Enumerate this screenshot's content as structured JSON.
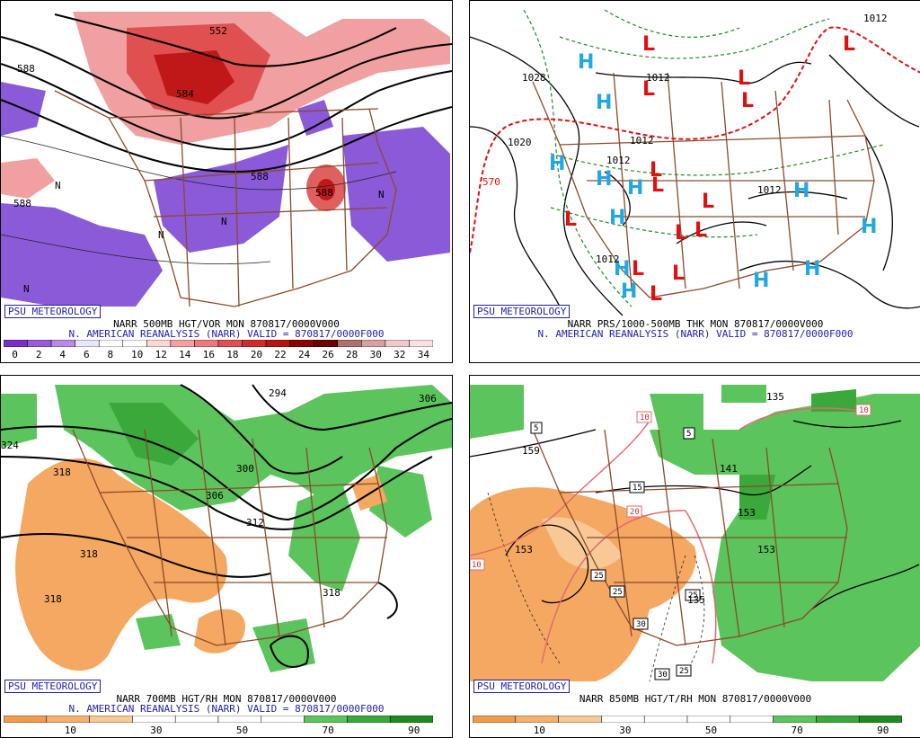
{
  "branding": {
    "label": "PSU METEOROLOGY"
  },
  "panels": [
    {
      "id": "top-left",
      "title_line1": "NARR 500MB HGT/VOR MON 870817/0000V000",
      "title_line2": "N. AMERICAN REANALYSIS (NARR) VALID = 870817/0000F000",
      "colorbar": {
        "colors": [
          "#7a2fc4",
          "#9a5ad8",
          "#b88ae6",
          "#e6e6ff",
          "#ffffff",
          "#ffffff",
          "#ffd6d6",
          "#f4a0a0",
          "#ec7a7a",
          "#e05050",
          "#d02a2a",
          "#b81212",
          "#8c0000",
          "#6a0000",
          "#b07070",
          "#d8a0a0",
          "#f0c8c8",
          "#ffe0e0"
        ],
        "labels": [
          "0",
          "2",
          "4",
          "6",
          "8",
          "10",
          "12",
          "14",
          "16",
          "18",
          "20",
          "22",
          "24",
          "26",
          "28",
          "30",
          "32",
          "34"
        ]
      },
      "map_labels": [
        "552",
        "584",
        "588",
        "588",
        "588",
        "588",
        "N",
        "N",
        "N",
        "N",
        "N"
      ]
    },
    {
      "id": "top-right",
      "title_line1": "NARR PRS/1000-500MB THK MON 870817/0000V000",
      "title_line2": "N. AMERICAN REANALYSIS (NARR) VALID = 870817/0000F000",
      "colorbar": null,
      "map_labels": [
        "1028",
        "1020",
        "1012",
        "1012",
        "1012",
        "1012",
        "1012",
        "1012",
        "570",
        "H",
        "L"
      ]
    },
    {
      "id": "bottom-left",
      "title_line1": "NARR 700MB HGT/RH MON 870817/0000V000",
      "title_line2": "N. AMERICAN REANALYSIS (NARR) VALID = 870817/0000F000",
      "colorbar": {
        "colors": [
          "#f29a4e",
          "#f5b070",
          "#f8c896",
          "#ffffff",
          "#ffffff",
          "#ffffff",
          "#ffffff",
          "#5cc45c",
          "#3aa83a",
          "#1f8a1f"
        ],
        "labels": [
          "10",
          "30",
          "50",
          "70",
          "90"
        ]
      },
      "map_labels": [
        "294",
        "306",
        "324",
        "318",
        "300",
        "306",
        "312",
        "318",
        "318",
        "318"
      ]
    },
    {
      "id": "bottom-right",
      "title_line1": "NARR 850MB HGT/T/RH MON 870817/0000V000",
      "title_line2": "",
      "colorbar": {
        "colors": [
          "#f29a4e",
          "#f5b070",
          "#f8c896",
          "#ffffff",
          "#ffffff",
          "#ffffff",
          "#ffffff",
          "#5cc45c",
          "#3aa83a",
          "#1f8a1f"
        ],
        "labels": [
          "10",
          "30",
          "50",
          "70",
          "90"
        ]
      },
      "map_labels": [
        "135",
        "159",
        "141",
        "153",
        "153",
        "153",
        "135",
        "10",
        "10",
        "10",
        "20",
        "5",
        "5",
        "15",
        "25",
        "25",
        "25",
        "30",
        "30",
        "25"
      ]
    }
  ]
}
